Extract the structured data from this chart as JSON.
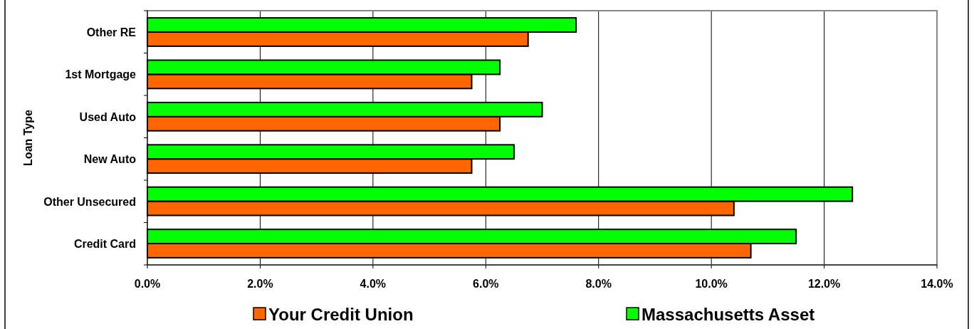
{
  "chart_data": {
    "type": "bar",
    "orientation": "horizontal",
    "ylabel": "Loan Type",
    "categories": [
      "Other RE",
      "1st Mortgage",
      "Used Auto",
      "New Auto",
      "Other Unsecured",
      "Credit Card"
    ],
    "series": [
      {
        "name": "Your Credit Union",
        "color": "#ff6600",
        "values": [
          6.75,
          5.75,
          6.25,
          5.75,
          10.4,
          10.7
        ]
      },
      {
        "name": "Massachusetts Asset",
        "color": "#00ff00",
        "values": [
          7.6,
          6.25,
          7.0,
          6.5,
          12.5,
          11.5
        ]
      }
    ],
    "xlim": [
      0,
      14
    ],
    "xticks": [
      {
        "value": 0,
        "label": "0.0%"
      },
      {
        "value": 2,
        "label": "2.0%"
      },
      {
        "value": 4,
        "label": "4.0%"
      },
      {
        "value": 6,
        "label": "6.0%"
      },
      {
        "value": 8,
        "label": "8.0%"
      },
      {
        "value": 10,
        "label": "10.0%"
      },
      {
        "value": 12,
        "label": "12.0%"
      },
      {
        "value": 14,
        "label": "14.0%"
      }
    ],
    "grid": "x",
    "legend": "bottom"
  }
}
